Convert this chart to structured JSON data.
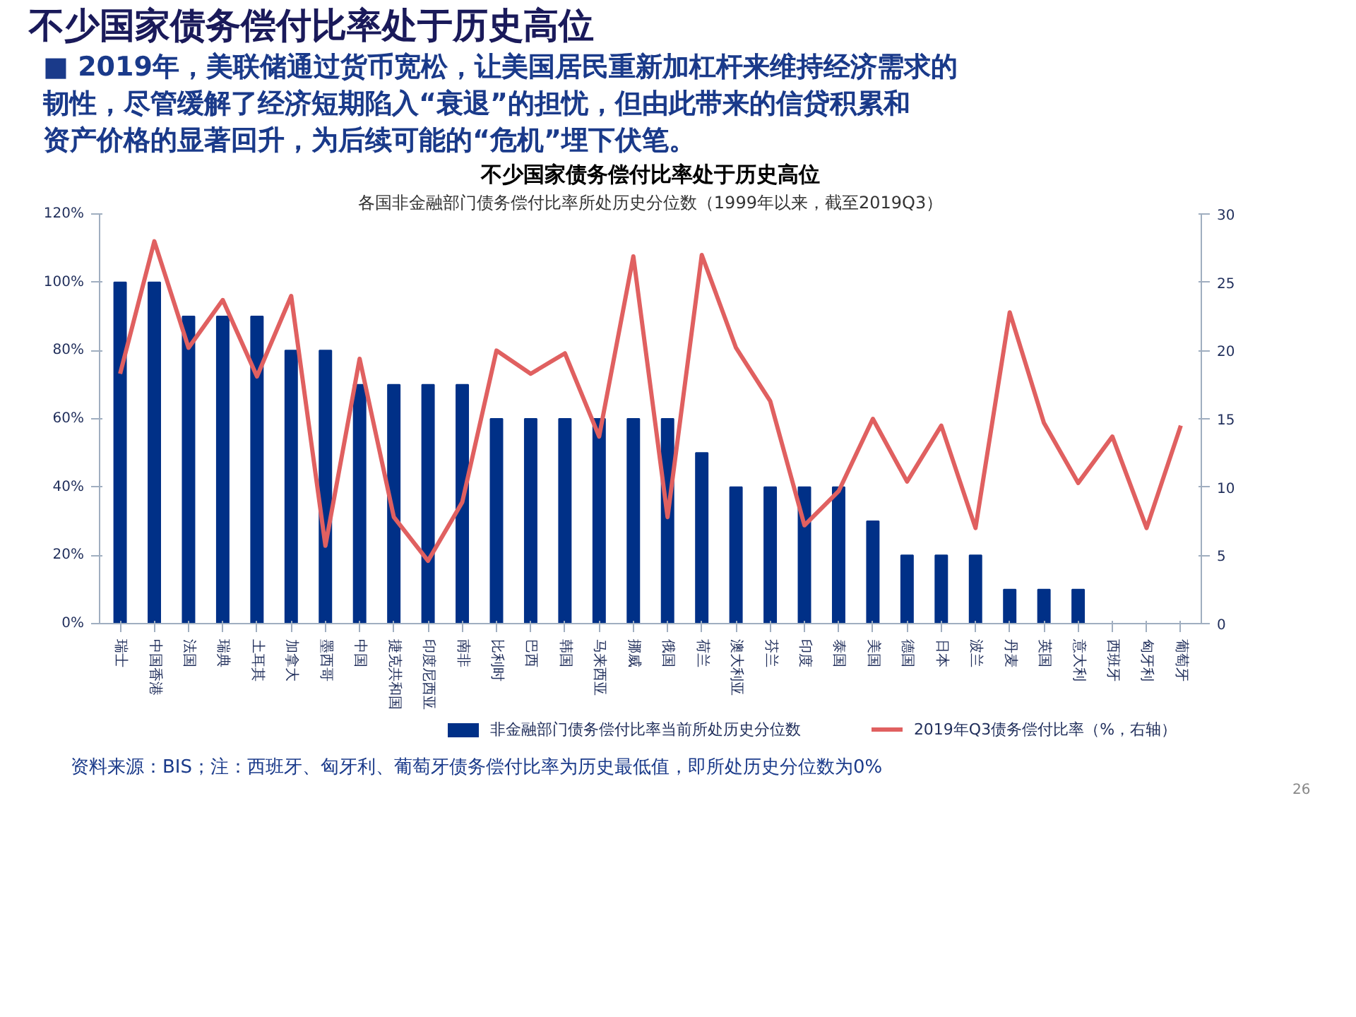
{
  "chart_data": {
    "type": "bar",
    "title": "不少国家债务偿付比率处于历史高位",
    "subtitle": "各国非金融部门债务偿付比率所处历史分位数（1999年以来，截至2019Q3）",
    "annotations": [
      "不少国家债务偿付比率处于历史高位",
      "■ 2019年，美联储通过货币宽松，让美国居民重新加杠杆来维持经济需求的",
      "韧性，尽管缓解了经济短期陷入“衰退”的担忧，但由此带来的信贷积累和",
      "资产价格的显著回升，为后续可能的“危机”埋下伏笔。",
      "资料来源：BIS；注：西班牙、匈牙利、葡萄牙债务偿付比率为历史最低值，即所处历史分位数为0%",
      "26"
    ],
    "categories": [
      "瑞士",
      "中国香港",
      "法国",
      "瑞典",
      "土耳其",
      "加拿大",
      "墨西哥",
      "中国",
      "捷克共和国",
      "印度尼西亚",
      "南非",
      "比利时",
      "巴西",
      "韩国",
      "马来西亚",
      "挪威",
      "俄国",
      "荷兰",
      "澳大利亚",
      "芬兰",
      "印度",
      "泰国",
      "美国",
      "德国",
      "日本",
      "波兰",
      "丹麦",
      "英国",
      "意大利",
      "西班牙",
      "匈牙利",
      "葡萄牙"
    ],
    "series": [
      {
        "name": "非金融部门债务偿付比率当前所处历史分位数",
        "color": "#003087",
        "values": [
          100,
          100,
          90,
          90,
          90,
          80,
          80,
          70,
          70,
          70,
          70,
          60,
          60,
          60,
          60,
          60,
          60,
          50,
          40,
          40,
          40,
          40,
          30,
          20,
          20,
          20,
          10,
          10,
          10,
          0,
          0,
          0
        ]
      },
      {
        "name": "2019年Q3债务偿付比率（%，右轴）",
        "type": "line",
        "axis": "y2",
        "color": "#e06060",
        "values": [
          18.3,
          28,
          20.2,
          23.7,
          18.1,
          24,
          5.7,
          19.4,
          7.8,
          4.6,
          8.9,
          20,
          18.3,
          19.8,
          13.7,
          26.9,
          7.8,
          27,
          20.2,
          16.3,
          7.2,
          9.7,
          15,
          10.4,
          14.5,
          7,
          22.8,
          14.7,
          10.3,
          13.7,
          7,
          14.5
        ]
      }
    ],
    "ylim": [
      0,
      120
    ],
    "yticks": [
      {
        "value": 0,
        "label": "0%"
      },
      {
        "value": 20,
        "label": "20%"
      },
      {
        "value": 40,
        "label": "40%"
      },
      {
        "value": 60,
        "label": "60%"
      },
      {
        "value": 80,
        "label": "80%"
      },
      {
        "value": 100,
        "label": "100%"
      },
      {
        "value": 120,
        "label": "120%"
      }
    ],
    "y2lim": [
      0,
      30
    ],
    "y2ticks": [
      0,
      5,
      10,
      15,
      20,
      25,
      30
    ],
    "grid": false,
    "legend": "bottom",
    "marker": "none",
    "line_style": "solid"
  }
}
